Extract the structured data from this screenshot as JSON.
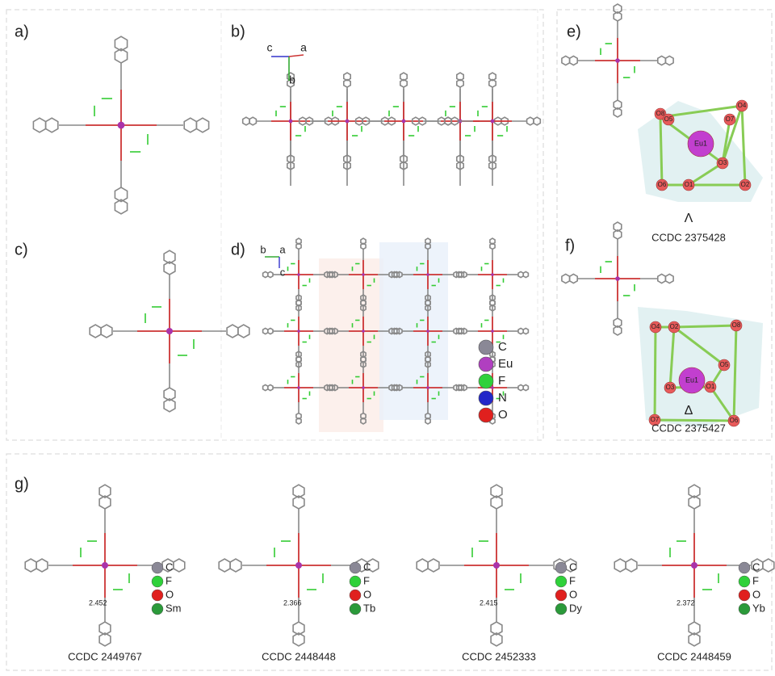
{
  "panels": {
    "a": {
      "label": "a)"
    },
    "b": {
      "label": "b)",
      "axes": [
        "c",
        "a",
        "b"
      ]
    },
    "c": {
      "label": "c)"
    },
    "d": {
      "label": "d)",
      "axes": [
        "b",
        "a",
        "c"
      ],
      "legend": [
        "C",
        "Eu",
        "F",
        "N",
        "O"
      ]
    },
    "e": {
      "label": "e)",
      "atoms": [
        "O8",
        "O5",
        "O4",
        "O7",
        "Eu1",
        "O3",
        "O6",
        "O1",
        "O2"
      ],
      "chirality": "Λ",
      "ccdc": "CCDC 2375428"
    },
    "f": {
      "label": "f)",
      "atoms": [
        "O4",
        "O2",
        "O8",
        "O5",
        "Eu1",
        "O3",
        "O1",
        "O7",
        "O6"
      ],
      "chirality": "Δ",
      "ccdc": "CCDC 2375427"
    },
    "g": {
      "label": "g)",
      "structures": [
        {
          "distance": "2.452",
          "legend": [
            "C",
            "F",
            "O",
            "Sm"
          ],
          "ccdc": "CCDC 2449767"
        },
        {
          "distance": "2.366",
          "legend": [
            "C",
            "F",
            "O",
            "Tb"
          ],
          "ccdc": "CCDC 2448448"
        },
        {
          "distance": "2.415",
          "legend": [
            "C",
            "F",
            "O",
            "Dy"
          ],
          "ccdc": "CCDC 2452333"
        },
        {
          "distance": "2.372",
          "legend": [
            "C",
            "F",
            "O",
            "Yb"
          ],
          "ccdc": "CCDC 2448459"
        }
      ]
    }
  }
}
